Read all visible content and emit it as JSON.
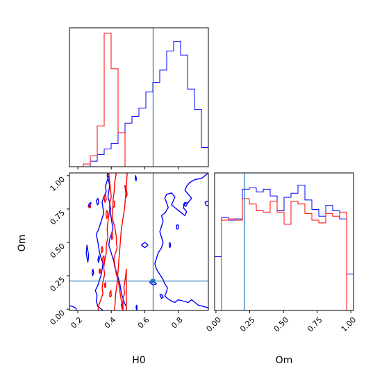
{
  "chart_data": {
    "type": "corner",
    "colors": {
      "series_a": "#ff0000",
      "series_b": "#0000ff",
      "truth": "#1f77b4",
      "frame": "#000000"
    },
    "x_axis_label": "H0",
    "y_axis_label": "Om",
    "truth": {
      "H0": 0.65,
      "Om": 0.21
    },
    "ranges": {
      "H0": [
        0.15,
        0.98
      ],
      "Om": [
        -0.01,
        1.02
      ]
    },
    "ticks": {
      "H0": [
        0.2,
        0.4,
        0.6,
        0.8
      ],
      "H0_labels": [
        "0.2",
        "0.4",
        "0.6",
        "0.8"
      ],
      "Om": [
        0.0,
        0.25,
        0.5,
        0.75,
        1.0
      ],
      "Om_labels": [
        "0.00",
        "0.25",
        "0.50",
        "0.75",
        "1.00"
      ]
    },
    "hist_H0": {
      "bin_edges": [
        0.15,
        0.1915,
        0.233,
        0.2745,
        0.316,
        0.3575,
        0.399,
        0.4405,
        0.482,
        0.5235,
        0.565,
        0.6065,
        0.648,
        0.6895,
        0.731,
        0.7725,
        0.814,
        0.8555,
        0.897,
        0.9385,
        0.98
      ],
      "series_a": [
        0,
        0,
        0.02,
        0.08,
        0.3,
        0.98,
        0.72,
        0.25,
        0,
        0,
        0,
        0,
        0,
        0,
        0,
        0,
        0,
        0,
        0,
        0
      ],
      "series_b": [
        0,
        0,
        0,
        0.04,
        0.09,
        0.13,
        0.17,
        0.25,
        0.32,
        0.37,
        0.43,
        0.55,
        0.62,
        0.71,
        0.85,
        0.92,
        0.82,
        0.57,
        0.42,
        0.14
      ]
    },
    "hist_Om": {
      "bin_edges": [
        -0.01,
        0.0415,
        0.093,
        0.1445,
        0.196,
        0.2475,
        0.299,
        0.3505,
        0.402,
        0.4535,
        0.505,
        0.5565,
        0.608,
        0.6595,
        0.711,
        0.7625,
        0.814,
        0.8655,
        0.917,
        0.9685,
        1.02
      ],
      "series_a": [
        0,
        0.67,
        0.68,
        0.67,
        0.83,
        0.79,
        0.74,
        0.73,
        0.81,
        0.73,
        0.64,
        0.81,
        0.79,
        0.72,
        0.67,
        0.65,
        0.72,
        0.7,
        0.73,
        0
      ],
      "series_b": [
        0.4,
        0.69,
        0.67,
        0.68,
        0.9,
        0.91,
        0.88,
        0.9,
        0.85,
        0.74,
        0.84,
        0.87,
        0.93,
        0.82,
        0.75,
        0.7,
        0.78,
        0.74,
        0.68,
        0.27
      ]
    },
    "contours": {
      "series_a": [
        {
          "H0": [
            0.43,
            0.425,
            0.42,
            0.418,
            0.415,
            0.41,
            0.41,
            0.408,
            0.405,
            0.41,
            0.42,
            0.425,
            0.43,
            0.43,
            0.435,
            0.425,
            0.415,
            0.42,
            0.425,
            0.43,
            0.44,
            0.445,
            0.45,
            0.455,
            0.46,
            0.47,
            0.47,
            0.465,
            0.47,
            0.47,
            0.48,
            0.475,
            0.48,
            0.485,
            0.49,
            0.49
          ],
          "Om": [
            1.02,
            0.98,
            0.95,
            0.9,
            0.86,
            0.82,
            0.78,
            0.74,
            0.7,
            0.66,
            0.62,
            0.58,
            0.54,
            0.5,
            0.46,
            0.42,
            0.38,
            0.34,
            0.3,
            0.26,
            0.22,
            0.18,
            0.14,
            0.1,
            0.06,
            0.02,
            -0.01,
            0.02,
            0.04,
            0.08,
            0.12,
            0.16,
            0.2,
            0.24,
            0.3,
            -0.01
          ]
        },
        {
          "H0": [
            0.32,
            0.325,
            0.34,
            0.35,
            0.345,
            0.35,
            0.36,
            0.355,
            0.36,
            0.37,
            0.37,
            0.38,
            0.375,
            0.38,
            0.385,
            0.39,
            0.39,
            0.4,
            0.395,
            0.39,
            0.385
          ],
          "Om": [
            -0.01,
            0.03,
            0.08,
            0.12,
            0.16,
            0.2,
            0.26,
            0.31,
            0.36,
            0.42,
            0.48,
            0.54,
            0.6,
            0.65,
            0.7,
            0.74,
            0.79,
            0.84,
            0.9,
            0.96,
            1.02
          ]
        },
        {
          "H0": [
            0.495,
            0.49,
            0.485,
            0.48,
            0.47,
            0.46,
            0.455,
            0.45,
            0.445,
            0.44,
            0.435,
            0.425,
            0.42
          ],
          "Om": [
            1.02,
            0.92,
            0.84,
            0.76,
            0.68,
            0.6,
            0.52,
            0.44,
            0.36,
            0.28,
            0.2,
            0.1,
            -0.01
          ]
        },
        {
          "H0": [
            0.48,
            0.49,
            0.495,
            0.49,
            0.48
          ],
          "Om": [
            0.93,
            0.9,
            0.86,
            0.84,
            0.93
          ]
        },
        {
          "H0": [
            0.357,
            0.365,
            0.37,
            0.362,
            0.357
          ],
          "Om": [
            0.84,
            0.86,
            0.82,
            0.8,
            0.84
          ]
        },
        {
          "H0": [
            0.368,
            0.375,
            0.38,
            0.372,
            0.368
          ],
          "Om": [
            0.72,
            0.74,
            0.7,
            0.68,
            0.72
          ]
        },
        {
          "H0": [
            0.4,
            0.405,
            0.41,
            0.403,
            0.4
          ],
          "Om": [
            0.56,
            0.58,
            0.54,
            0.52,
            0.56
          ]
        },
        {
          "H0": [
            0.268,
            0.276,
            0.275,
            0.267,
            0.268
          ],
          "Om": [
            0.78,
            0.78,
            0.76,
            0.76,
            0.78
          ]
        },
        {
          "H0": [
            0.34,
            0.345,
            0.35,
            0.342,
            0.34
          ],
          "Om": [
            0.45,
            0.47,
            0.44,
            0.42,
            0.45
          ]
        },
        {
          "H0": [
            0.328,
            0.334,
            0.334,
            0.328,
            0.328
          ],
          "Om": [
            0.3,
            0.3,
            0.27,
            0.27,
            0.3
          ]
        },
        {
          "H0": [
            0.348,
            0.356,
            0.36,
            0.352,
            0.348
          ],
          "Om": [
            0.38,
            0.4,
            0.35,
            0.33,
            0.38
          ]
        },
        {
          "H0": [
            0.41,
            0.418,
            0.42,
            0.412,
            0.41
          ],
          "Om": [
            0.8,
            0.81,
            0.77,
            0.76,
            0.8
          ]
        },
        {
          "H0": [
            0.39,
            0.398,
            0.4,
            0.392,
            0.39
          ],
          "Om": [
            0.12,
            0.14,
            0.1,
            0.09,
            0.12
          ]
        },
        {
          "H0": [
            0.36,
            0.366,
            0.368,
            0.362,
            0.36
          ],
          "Om": [
            0.19,
            0.2,
            0.17,
            0.16,
            0.19
          ]
        }
      ],
      "series_b": [
        {
          "H0": [
            0.35,
            0.32,
            0.31,
            0.315,
            0.305,
            0.32,
            0.33,
            0.34,
            0.345,
            0.35,
            0.34,
            0.33,
            0.325,
            0.32,
            0.31,
            0.325,
            0.335,
            0.345,
            0.355,
            0.35,
            0.345,
            0.355,
            0.37,
            0.365,
            0.375,
            0.385,
            0.38,
            0.375,
            0.385,
            0.39,
            0.385,
            0.38,
            0.39,
            0.395,
            0.395,
            0.4,
            0.405,
            0.41,
            0.4,
            0.39,
            0.385,
            0.395,
            0.405,
            0.415,
            0.42
          ],
          "Om": [
            -0.01,
            0.02,
            0.06,
            0.1,
            0.14,
            0.18,
            0.22,
            0.26,
            0.3,
            0.34,
            0.38,
            0.42,
            0.46,
            0.5,
            0.56,
            0.6,
            0.64,
            0.68,
            0.72,
            0.76,
            0.8,
            0.84,
            0.88,
            0.92,
            0.96,
            1.0,
            1.02,
            1.0,
            0.96,
            0.92,
            0.88,
            0.84,
            0.8,
            0.76,
            0.72,
            0.68,
            0.64,
            0.6,
            0.56,
            0.52,
            0.48,
            0.44,
            0.4,
            0.36,
            0.32
          ]
        },
        {
          "H0": [
            0.42,
            0.43,
            0.44,
            0.45,
            0.455,
            0.46,
            0.47,
            0.48,
            0.49,
            0.49
          ],
          "Om": [
            0.32,
            0.28,
            0.24,
            0.2,
            0.16,
            0.12,
            0.08,
            0.04,
            0.02,
            -0.01
          ]
        },
        {
          "H0": [
            0.98,
            0.96,
            0.94,
            0.9,
            0.87,
            0.85,
            0.84,
            0.86,
            0.88,
            0.86,
            0.84,
            0.83,
            0.85,
            0.84,
            0.82,
            0.8,
            0.78,
            0.76,
            0.77,
            0.78,
            0.76,
            0.73,
            0.72,
            0.73,
            0.74,
            0.72,
            0.7,
            0.71,
            0.7,
            0.69,
            0.7,
            0.71,
            0.7,
            0.68,
            0.67,
            0.66,
            0.67,
            0.69,
            0.71,
            0.72,
            0.735,
            0.73,
            0.72,
            0.735,
            0.76,
            0.78,
            0.8,
            0.83,
            0.86,
            0.88,
            0.9,
            0.92,
            0.95,
            0.98
          ],
          "Om": [
            1.02,
            1.0,
            0.98,
            0.97,
            0.95,
            0.92,
            0.89,
            0.86,
            0.83,
            0.8,
            0.79,
            0.76,
            0.73,
            0.7,
            0.72,
            0.74,
            0.76,
            0.78,
            0.81,
            0.84,
            0.87,
            0.86,
            0.83,
            0.8,
            0.76,
            0.72,
            0.7,
            0.66,
            0.62,
            0.58,
            0.54,
            0.5,
            0.46,
            0.42,
            0.38,
            0.34,
            0.3,
            0.26,
            0.22,
            0.19,
            0.16,
            0.13,
            0.1,
            0.08,
            0.06,
            0.05,
            0.07,
            0.06,
            0.05,
            0.07,
            0.05,
            0.03,
            0.02,
            0.01
          ]
        },
        {
          "H0": [
            0.55,
            0.548,
            0.543,
            0.545,
            0.55
          ],
          "Om": [
            0.98,
            0.96,
            0.98,
            1.0,
            0.98
          ]
        },
        {
          "H0": [
            0.555,
            0.552,
            0.548,
            0.55,
            0.555
          ],
          "Om": [
            0.02,
            -0.01,
            0.01,
            0.03,
            0.02
          ]
        },
        {
          "H0": [
            0.46,
            0.465,
            0.47,
            0.466,
            0.46
          ],
          "Om": [
            0.03,
            0.05,
            0.02,
            0.0,
            0.03
          ]
        },
        {
          "H0": [
            0.28,
            0.268,
            0.262,
            0.27,
            0.28
          ],
          "Om": [
            0.8,
            0.79,
            0.77,
            0.76,
            0.8
          ]
        },
        {
          "H0": [
            0.31,
            0.32,
            0.325,
            0.318,
            0.31
          ],
          "Om": [
            0.81,
            0.83,
            0.8,
            0.78,
            0.81
          ]
        },
        {
          "H0": [
            0.26,
            0.25,
            0.255,
            0.265,
            0.26
          ],
          "Om": [
            0.35,
            0.42,
            0.48,
            0.4,
            0.35
          ]
        },
        {
          "H0": [
            0.285,
            0.29,
            0.295,
            0.288,
            0.285
          ],
          "Om": [
            0.27,
            0.3,
            0.27,
            0.25,
            0.27
          ]
        },
        {
          "H0": [
            0.32,
            0.326,
            0.33,
            0.323,
            0.32
          ],
          "Om": [
            0.37,
            0.4,
            0.38,
            0.35,
            0.37
          ]
        },
        {
          "H0": [
            0.62,
            0.6,
            0.58,
            0.6,
            0.62
          ],
          "Om": [
            0.48,
            0.5,
            0.48,
            0.46,
            0.48
          ]
        },
        {
          "H0": [
            0.755,
            0.75,
            0.745,
            0.75,
            0.755
          ],
          "Om": [
            0.48,
            0.5,
            0.48,
            0.46,
            0.48
          ]
        },
        {
          "H0": [
            0.83,
            0.84,
            0.855,
            0.845,
            0.83
          ],
          "Om": [
            0.78,
            0.8,
            0.79,
            0.77,
            0.78
          ]
        },
        {
          "H0": [
            0.79,
            0.8,
            0.8,
            0.79,
            0.79
          ],
          "Om": [
            0.63,
            0.63,
            0.6,
            0.6,
            0.63
          ]
        },
        {
          "H0": [
            0.66,
            0.64,
            0.63,
            0.65,
            0.67,
            0.66
          ],
          "Om": [
            0.2,
            0.22,
            0.2,
            0.18,
            0.19,
            0.2
          ]
        },
        {
          "H0": [
            0.69,
            0.7,
            0.71,
            0.7,
            0.69
          ],
          "Om": [
            0.11,
            0.11,
            0.09,
            0.08,
            0.11
          ]
        },
        {
          "H0": [
            0.15,
            0.17,
            0.19,
            0.19
          ],
          "Om": [
            0.025,
            0.02,
            0.005,
            -0.01
          ]
        },
        {
          "H0": [
            0.98,
            0.96,
            0.965,
            0.98
          ],
          "Om": [
            0.81,
            0.8,
            0.78,
            0.77
          ]
        }
      ]
    }
  }
}
